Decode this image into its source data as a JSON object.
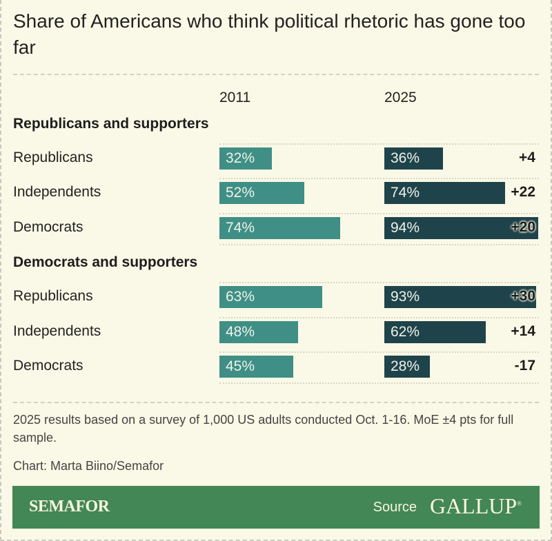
{
  "chart_data": {
    "type": "bar",
    "title": "Share of Americans who think political rhetoric has gone too far",
    "columns": [
      "2011",
      "2025"
    ],
    "groups": [
      {
        "name": "Republicans and supporters",
        "rows": [
          {
            "label": "Republicans",
            "v2011": 32,
            "v2025": 36,
            "l2011": "32%",
            "l2025": "36%",
            "change": "+4"
          },
          {
            "label": "Independents",
            "v2011": 52,
            "v2025": 74,
            "l2011": "52%",
            "l2025": "74%",
            "change": "+22"
          },
          {
            "label": "Democrats",
            "v2011": 74,
            "v2025": 94,
            "l2011": "74%",
            "l2025": "94%",
            "change": "+20"
          }
        ]
      },
      {
        "name": "Democrats and supporters",
        "rows": [
          {
            "label": "Republicans",
            "v2011": 63,
            "v2025": 93,
            "l2011": "63%",
            "l2025": "93%",
            "change": "+30"
          },
          {
            "label": "Independents",
            "v2011": 48,
            "v2025": 62,
            "l2011": "48%",
            "l2025": "62%",
            "change": "+14"
          },
          {
            "label": "Democrats",
            "v2011": 45,
            "v2025": 28,
            "l2011": "45%",
            "l2025": "28%",
            "change": "-17"
          }
        ]
      }
    ],
    "xlim": [
      0,
      100
    ]
  },
  "note": "2025 results based on a survey of 1,000 US adults conducted Oct. 1-16. MoE ±4 pts for full sample.",
  "credit": "Chart: Marta Biino/Semafor",
  "footer": {
    "brand": "SEMAFOR",
    "source_label": "Source",
    "source": "GALLUP",
    "registered": "®"
  },
  "colors": {
    "bar2011": "#3f8f86",
    "bar2025": "#1f434a",
    "band": "#428755"
  }
}
